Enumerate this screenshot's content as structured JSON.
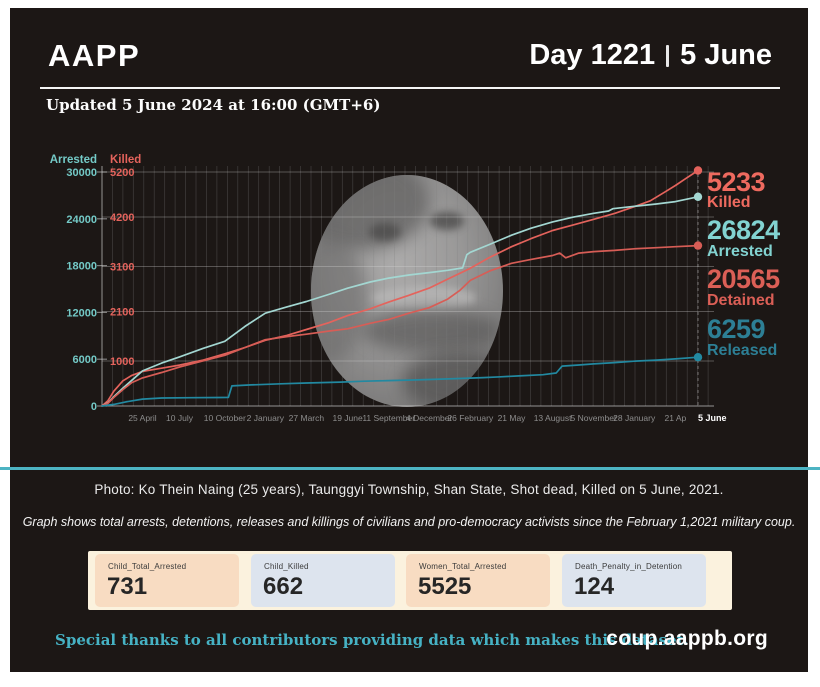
{
  "header": {
    "brand": "AAPP",
    "day_label": "Day 1221",
    "date_label": "5 June",
    "updated": "Updated 5 June 2024 at 16:00 (GMT+6)"
  },
  "chart_data": {
    "type": "line",
    "title": "",
    "left_axis": {
      "label": "Arrested",
      "color": "#74cac7",
      "max": 30000,
      "ticks": [
        30000,
        24000,
        18000,
        12000,
        6000,
        0
      ]
    },
    "right_axis": {
      "label": "Killed",
      "color": "#e4635c",
      "max": 5200,
      "ticks": [
        5200,
        4200,
        3100,
        2100,
        1000
      ]
    },
    "x_ticks": [
      "25 April",
      "10 July",
      "10 October",
      "2 January",
      "27 March",
      "19 June",
      "11 September",
      "4 December",
      "26 February",
      "21 May",
      "13 August",
      "5 November",
      "28 January",
      "21 Ap",
      "5 June"
    ],
    "x_tick_fractions": [
      0.068,
      0.13,
      0.206,
      0.274,
      0.343,
      0.412,
      0.481,
      0.549,
      0.618,
      0.687,
      0.756,
      0.825,
      0.893,
      0.962,
      1.024
    ],
    "series": [
      {
        "name": "Killed",
        "axis": "right",
        "color": "#e4635c",
        "final": 5233,
        "points": [
          [
            0,
            0
          ],
          [
            0.01,
            120
          ],
          [
            0.02,
            330
          ],
          [
            0.035,
            560
          ],
          [
            0.05,
            680
          ],
          [
            0.068,
            770
          ],
          [
            0.1,
            840
          ],
          [
            0.13,
            910
          ],
          [
            0.17,
            1020
          ],
          [
            0.206,
            1160
          ],
          [
            0.24,
            1300
          ],
          [
            0.274,
            1460
          ],
          [
            0.31,
            1570
          ],
          [
            0.343,
            1700
          ],
          [
            0.38,
            1850
          ],
          [
            0.412,
            2010
          ],
          [
            0.45,
            2160
          ],
          [
            0.481,
            2310
          ],
          [
            0.515,
            2460
          ],
          [
            0.549,
            2620
          ],
          [
            0.58,
            2820
          ],
          [
            0.618,
            3060
          ],
          [
            0.65,
            3300
          ],
          [
            0.687,
            3540
          ],
          [
            0.72,
            3720
          ],
          [
            0.756,
            3900
          ],
          [
            0.79,
            4020
          ],
          [
            0.825,
            4150
          ],
          [
            0.86,
            4280
          ],
          [
            0.893,
            4430
          ],
          [
            0.92,
            4560
          ],
          [
            0.945,
            4760
          ],
          [
            0.962,
            4900
          ],
          [
            0.98,
            5060
          ],
          [
            1,
            5233
          ]
        ]
      },
      {
        "name": "Arrested",
        "axis": "left",
        "color": "#a3d7d2",
        "final": 26824,
        "points": [
          [
            0,
            0
          ],
          [
            0.01,
            400
          ],
          [
            0.02,
            1200
          ],
          [
            0.035,
            2300
          ],
          [
            0.05,
            3300
          ],
          [
            0.068,
            4500
          ],
          [
            0.1,
            5500
          ],
          [
            0.13,
            6300
          ],
          [
            0.17,
            7400
          ],
          [
            0.206,
            8300
          ],
          [
            0.24,
            10200
          ],
          [
            0.274,
            11900
          ],
          [
            0.31,
            12700
          ],
          [
            0.343,
            13400
          ],
          [
            0.38,
            14300
          ],
          [
            0.412,
            15100
          ],
          [
            0.45,
            15900
          ],
          [
            0.481,
            16400
          ],
          [
            0.515,
            16800
          ],
          [
            0.549,
            17100
          ],
          [
            0.58,
            17400
          ],
          [
            0.605,
            17700
          ],
          [
            0.612,
            19400
          ],
          [
            0.618,
            19700
          ],
          [
            0.65,
            20700
          ],
          [
            0.687,
            21900
          ],
          [
            0.72,
            22800
          ],
          [
            0.756,
            23600
          ],
          [
            0.79,
            24200
          ],
          [
            0.825,
            24700
          ],
          [
            0.85,
            25000
          ],
          [
            0.857,
            25300
          ],
          [
            0.893,
            25600
          ],
          [
            0.93,
            25900
          ],
          [
            0.962,
            26200
          ],
          [
            1,
            26824
          ]
        ]
      },
      {
        "name": "Detained",
        "axis": "left",
        "color": "#d75d56",
        "final": 20565,
        "points": [
          [
            0,
            0
          ],
          [
            0.01,
            350
          ],
          [
            0.02,
            1100
          ],
          [
            0.035,
            2100
          ],
          [
            0.05,
            3000
          ],
          [
            0.068,
            3600
          ],
          [
            0.1,
            4300
          ],
          [
            0.13,
            5000
          ],
          [
            0.17,
            5800
          ],
          [
            0.206,
            6500
          ],
          [
            0.24,
            7500
          ],
          [
            0.274,
            8500
          ],
          [
            0.31,
            8900
          ],
          [
            0.343,
            9200
          ],
          [
            0.38,
            9600
          ],
          [
            0.412,
            9900
          ],
          [
            0.45,
            10600
          ],
          [
            0.481,
            11100
          ],
          [
            0.515,
            11900
          ],
          [
            0.549,
            12600
          ],
          [
            0.58,
            13700
          ],
          [
            0.6,
            14800
          ],
          [
            0.618,
            16100
          ],
          [
            0.65,
            17300
          ],
          [
            0.687,
            18300
          ],
          [
            0.72,
            18800
          ],
          [
            0.756,
            19300
          ],
          [
            0.768,
            19600
          ],
          [
            0.778,
            19000
          ],
          [
            0.8,
            19600
          ],
          [
            0.825,
            19800
          ],
          [
            0.86,
            19950
          ],
          [
            0.893,
            20150
          ],
          [
            0.93,
            20300
          ],
          [
            0.962,
            20420
          ],
          [
            1,
            20565
          ]
        ]
      },
      {
        "name": "Released",
        "axis": "left",
        "color": "#2289a1",
        "final": 6259,
        "points": [
          [
            0,
            0
          ],
          [
            0.02,
            200
          ],
          [
            0.04,
            520
          ],
          [
            0.068,
            880
          ],
          [
            0.1,
            1020
          ],
          [
            0.15,
            1060
          ],
          [
            0.2,
            1090
          ],
          [
            0.212,
            1100
          ],
          [
            0.218,
            2580
          ],
          [
            0.25,
            2700
          ],
          [
            0.3,
            2840
          ],
          [
            0.343,
            2950
          ],
          [
            0.4,
            3060
          ],
          [
            0.44,
            3180
          ],
          [
            0.481,
            3260
          ],
          [
            0.52,
            3330
          ],
          [
            0.549,
            3400
          ],
          [
            0.6,
            3520
          ],
          [
            0.64,
            3640
          ],
          [
            0.669,
            3740
          ],
          [
            0.7,
            3860
          ],
          [
            0.74,
            4010
          ],
          [
            0.762,
            4230
          ],
          [
            0.772,
            5120
          ],
          [
            0.8,
            5260
          ],
          [
            0.825,
            5400
          ],
          [
            0.86,
            5560
          ],
          [
            0.893,
            5740
          ],
          [
            0.93,
            5890
          ],
          [
            0.962,
            6040
          ],
          [
            1,
            6259
          ]
        ]
      }
    ],
    "end_labels": [
      {
        "value": "5233",
        "label": "Killed",
        "color": "#ee6a5f"
      },
      {
        "value": "26824",
        "label": "Arrested",
        "color": "#82d3d1"
      },
      {
        "value": "20565",
        "label": "Detained",
        "color": "#db5f56"
      },
      {
        "value": "6259",
        "label": "Released",
        "color": "#2d7f95"
      }
    ],
    "grid": {
      "vertical": true,
      "horizontal": true
    },
    "legend_position": "right"
  },
  "photo_caption": "Photo: Ko Thein Naing (25 years), Taunggyi Township, Shan State, Shot dead, Killed on 5 June, 2021.",
  "graph_note": "Graph shows total arrests, detentions, releases and killings of civilians and pro-democracy activists since the February 1,2021 military coup.",
  "stats": [
    {
      "label": "Child_Total_Arrested",
      "value": "731"
    },
    {
      "label": "Child_Killed",
      "value": "662"
    },
    {
      "label": "Women_Total_Arrested",
      "value": "5525"
    },
    {
      "label": "Death_Penalty_in_Detention",
      "value": "124"
    }
  ],
  "footer": {
    "thanks": "Special thanks to all contributors providing data which makes this dataset.",
    "site": "coup.aappb.org"
  },
  "colors": {
    "panel_bg": "#1c1715",
    "divider_teal": "#4db4c3",
    "thanks_teal": "#46b2c4",
    "cream": "#fbf2de",
    "peach_card": "#f8dcc2",
    "blue_card": "#dde4ee"
  }
}
